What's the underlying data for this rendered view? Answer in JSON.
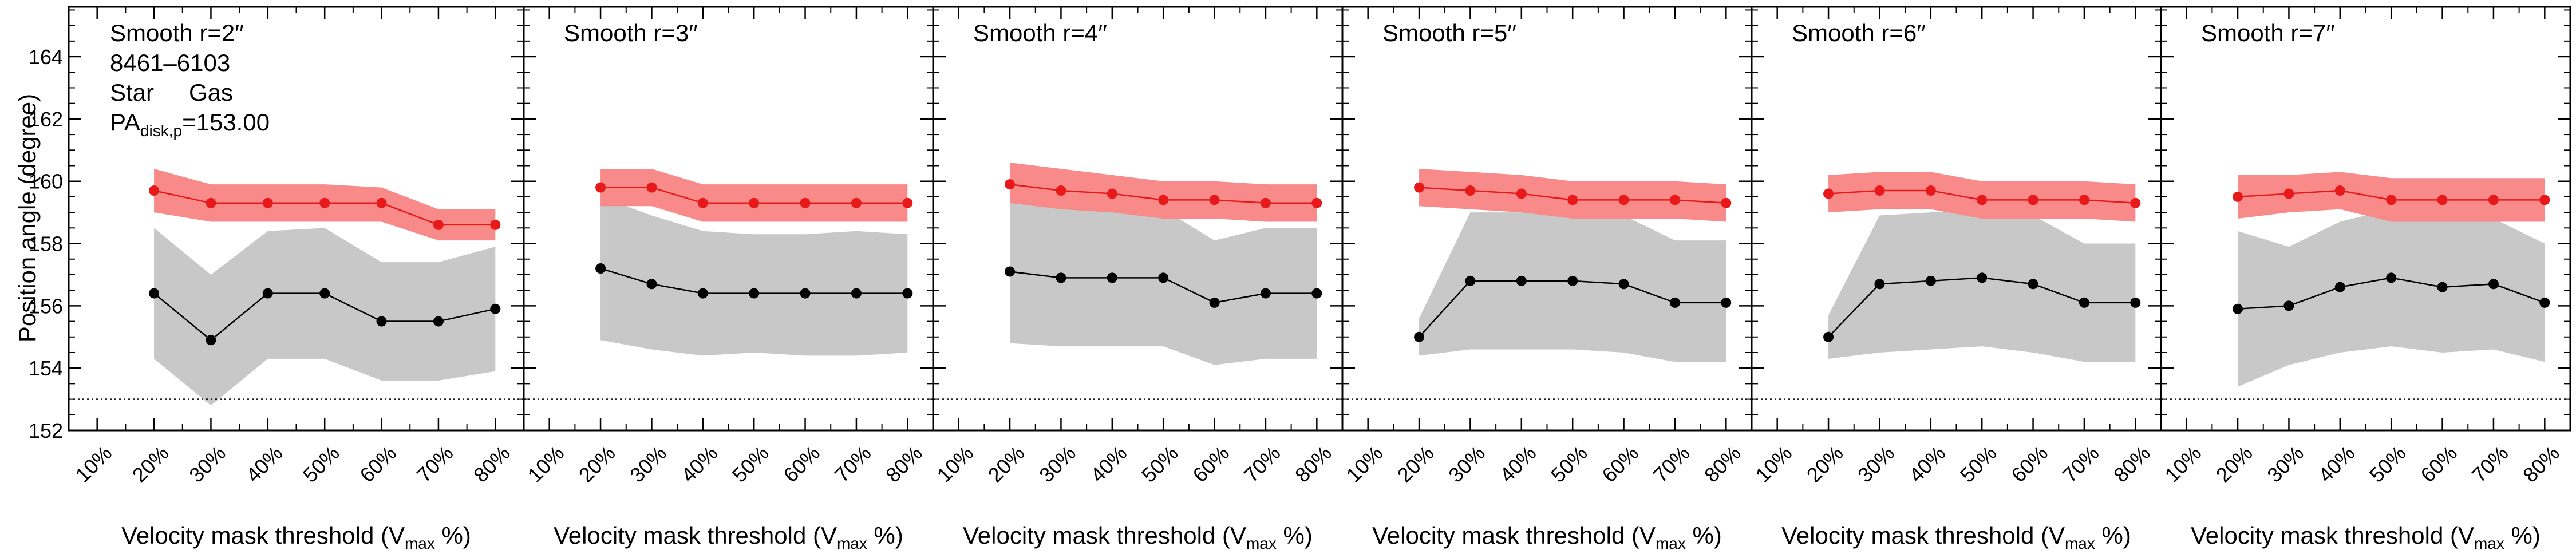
{
  "figure": {
    "ylabel": "Position angle (degree)",
    "xlabel_main": "Velocity mask threshold (V",
    "xlabel_sub": "max",
    "xlabel_tail": " %)",
    "galaxy_id": "8461–6103",
    "legend": {
      "star_label": "Star",
      "gas_label": "Gas"
    },
    "pa_label_main": "PA",
    "pa_label_sub": "disk,p",
    "pa_label_value": "=153.00",
    "colors": {
      "gas": "#e8191a",
      "gas_band": "#f98a8a",
      "star": "#000000",
      "star_band": "#c8c8c8"
    }
  },
  "chart_data": [
    {
      "type": "line",
      "title": "Smooth r=2′′",
      "x": [
        20,
        30,
        40,
        50,
        60,
        70,
        80
      ],
      "xticks": [
        "10%",
        "20%",
        "30%",
        "40%",
        "50%",
        "60%",
        "70%",
        "80%"
      ],
      "xlim": [
        5,
        85
      ],
      "ylim": [
        152,
        165.6
      ],
      "yticks": [
        152,
        154,
        156,
        158,
        160,
        162,
        164
      ],
      "reference_line": 153.0,
      "series": [
        {
          "name": "Gas",
          "values": [
            159.7,
            159.3,
            159.3,
            159.3,
            159.3,
            158.6,
            158.6
          ],
          "band_upper": [
            160.4,
            159.9,
            159.9,
            159.9,
            159.8,
            159.1,
            159.1
          ],
          "band_lower": [
            159.0,
            158.7,
            158.7,
            158.7,
            158.7,
            158.1,
            158.1
          ]
        },
        {
          "name": "Star",
          "values": [
            156.4,
            154.9,
            156.4,
            156.4,
            155.5,
            155.5,
            155.9
          ],
          "band_upper": [
            158.5,
            157.0,
            158.4,
            158.5,
            157.4,
            157.4,
            157.9
          ],
          "band_lower": [
            154.3,
            152.8,
            154.3,
            154.3,
            153.6,
            153.6,
            153.9
          ]
        }
      ]
    },
    {
      "type": "line",
      "title": "Smooth r=3′′",
      "x": [
        20,
        30,
        40,
        50,
        60,
        70,
        80
      ],
      "xticks": [
        "10%",
        "20%",
        "30%",
        "40%",
        "50%",
        "60%",
        "70%",
        "80%"
      ],
      "xlim": [
        5,
        85
      ],
      "ylim": [
        152,
        165.6
      ],
      "reference_line": 153.0,
      "series": [
        {
          "name": "Gas",
          "values": [
            159.8,
            159.8,
            159.3,
            159.3,
            159.3,
            159.3,
            159.3
          ],
          "band_upper": [
            160.4,
            160.4,
            159.9,
            159.9,
            159.9,
            159.9,
            159.9
          ],
          "band_lower": [
            159.2,
            159.2,
            158.7,
            158.7,
            158.7,
            158.7,
            158.7
          ]
        },
        {
          "name": "Star",
          "values": [
            157.2,
            156.7,
            156.4,
            156.4,
            156.4,
            156.4,
            156.4
          ],
          "band_upper": [
            159.5,
            158.9,
            158.4,
            158.3,
            158.3,
            158.4,
            158.3
          ],
          "band_lower": [
            154.9,
            154.6,
            154.4,
            154.5,
            154.4,
            154.4,
            154.5
          ]
        }
      ]
    },
    {
      "type": "line",
      "title": "Smooth r=4′′",
      "x": [
        20,
        30,
        40,
        50,
        60,
        70,
        80
      ],
      "xticks": [
        "10%",
        "20%",
        "30%",
        "40%",
        "50%",
        "60%",
        "70%",
        "80%"
      ],
      "xlim": [
        5,
        85
      ],
      "ylim": [
        152,
        165.6
      ],
      "reference_line": 153.0,
      "series": [
        {
          "name": "Gas",
          "values": [
            159.9,
            159.7,
            159.6,
            159.4,
            159.4,
            159.3,
            159.3
          ],
          "band_upper": [
            160.6,
            160.4,
            160.2,
            160.0,
            160.0,
            159.9,
            159.9
          ],
          "band_lower": [
            159.3,
            159.1,
            159.0,
            158.8,
            158.8,
            158.7,
            158.7
          ]
        },
        {
          "name": "Star",
          "values": [
            157.1,
            156.9,
            156.9,
            156.9,
            156.1,
            156.4,
            156.4
          ],
          "band_upper": [
            159.4,
            159.1,
            159.1,
            159.1,
            158.1,
            158.5,
            158.5
          ],
          "band_lower": [
            154.8,
            154.7,
            154.7,
            154.7,
            154.1,
            154.3,
            154.3
          ]
        }
      ]
    },
    {
      "type": "line",
      "title": "Smooth r=5′′",
      "x": [
        20,
        30,
        40,
        50,
        60,
        70,
        80
      ],
      "xticks": [
        "10%",
        "20%",
        "30%",
        "40%",
        "50%",
        "60%",
        "70%",
        "80%"
      ],
      "xlim": [
        5,
        85
      ],
      "ylim": [
        152,
        165.6
      ],
      "reference_line": 153.0,
      "series": [
        {
          "name": "Gas",
          "values": [
            159.8,
            159.7,
            159.6,
            159.4,
            159.4,
            159.4,
            159.3
          ],
          "band_upper": [
            160.4,
            160.3,
            160.2,
            160.0,
            160.0,
            160.0,
            159.9
          ],
          "band_lower": [
            159.2,
            159.1,
            159.0,
            158.8,
            158.8,
            158.8,
            158.7
          ]
        },
        {
          "name": "Star",
          "values": [
            155.0,
            156.8,
            156.8,
            156.8,
            156.7,
            156.1,
            156.1
          ],
          "band_upper": [
            155.6,
            159.0,
            159.0,
            159.0,
            158.9,
            158.1,
            158.1
          ],
          "band_lower": [
            154.4,
            154.6,
            154.6,
            154.6,
            154.5,
            154.2,
            154.2
          ]
        }
      ]
    },
    {
      "type": "line",
      "title": "Smooth r=6′′",
      "x": [
        20,
        30,
        40,
        50,
        60,
        70,
        80
      ],
      "xticks": [
        "10%",
        "20%",
        "30%",
        "40%",
        "50%",
        "60%",
        "70%",
        "80%"
      ],
      "xlim": [
        5,
        85
      ],
      "ylim": [
        152,
        165.6
      ],
      "reference_line": 153.0,
      "series": [
        {
          "name": "Gas",
          "values": [
            159.6,
            159.7,
            159.7,
            159.4,
            159.4,
            159.4,
            159.3
          ],
          "band_upper": [
            160.2,
            160.3,
            160.3,
            160.0,
            160.0,
            160.0,
            159.9
          ],
          "band_lower": [
            159.0,
            159.1,
            159.1,
            158.8,
            158.8,
            158.8,
            158.7
          ]
        },
        {
          "name": "Star",
          "values": [
            155.0,
            156.7,
            156.8,
            156.9,
            156.7,
            156.1,
            156.1
          ],
          "band_upper": [
            155.7,
            158.9,
            159.0,
            159.1,
            158.9,
            158.0,
            158.0
          ],
          "band_lower": [
            154.3,
            154.5,
            154.6,
            154.7,
            154.5,
            154.2,
            154.2
          ]
        }
      ]
    },
    {
      "type": "line",
      "title": "Smooth r=7′′",
      "x": [
        20,
        30,
        40,
        50,
        60,
        70,
        80
      ],
      "xticks": [
        "10%",
        "20%",
        "30%",
        "40%",
        "50%",
        "60%",
        "70%",
        "80%"
      ],
      "xlim": [
        5,
        85
      ],
      "ylim": [
        152,
        165.6
      ],
      "reference_line": 153.0,
      "series": [
        {
          "name": "Gas",
          "values": [
            159.5,
            159.6,
            159.7,
            159.4,
            159.4,
            159.4,
            159.4
          ],
          "band_upper": [
            160.2,
            160.2,
            160.3,
            160.1,
            160.1,
            160.1,
            160.1
          ],
          "band_lower": [
            158.8,
            159.0,
            159.1,
            158.7,
            158.7,
            158.7,
            158.7
          ]
        },
        {
          "name": "Star",
          "values": [
            155.9,
            156.0,
            156.6,
            156.9,
            156.6,
            156.7,
            156.1
          ],
          "band_upper": [
            158.4,
            157.9,
            158.7,
            159.1,
            158.7,
            158.8,
            158.0
          ],
          "band_lower": [
            153.4,
            154.1,
            154.5,
            154.7,
            154.5,
            154.6,
            154.2
          ]
        }
      ]
    }
  ]
}
